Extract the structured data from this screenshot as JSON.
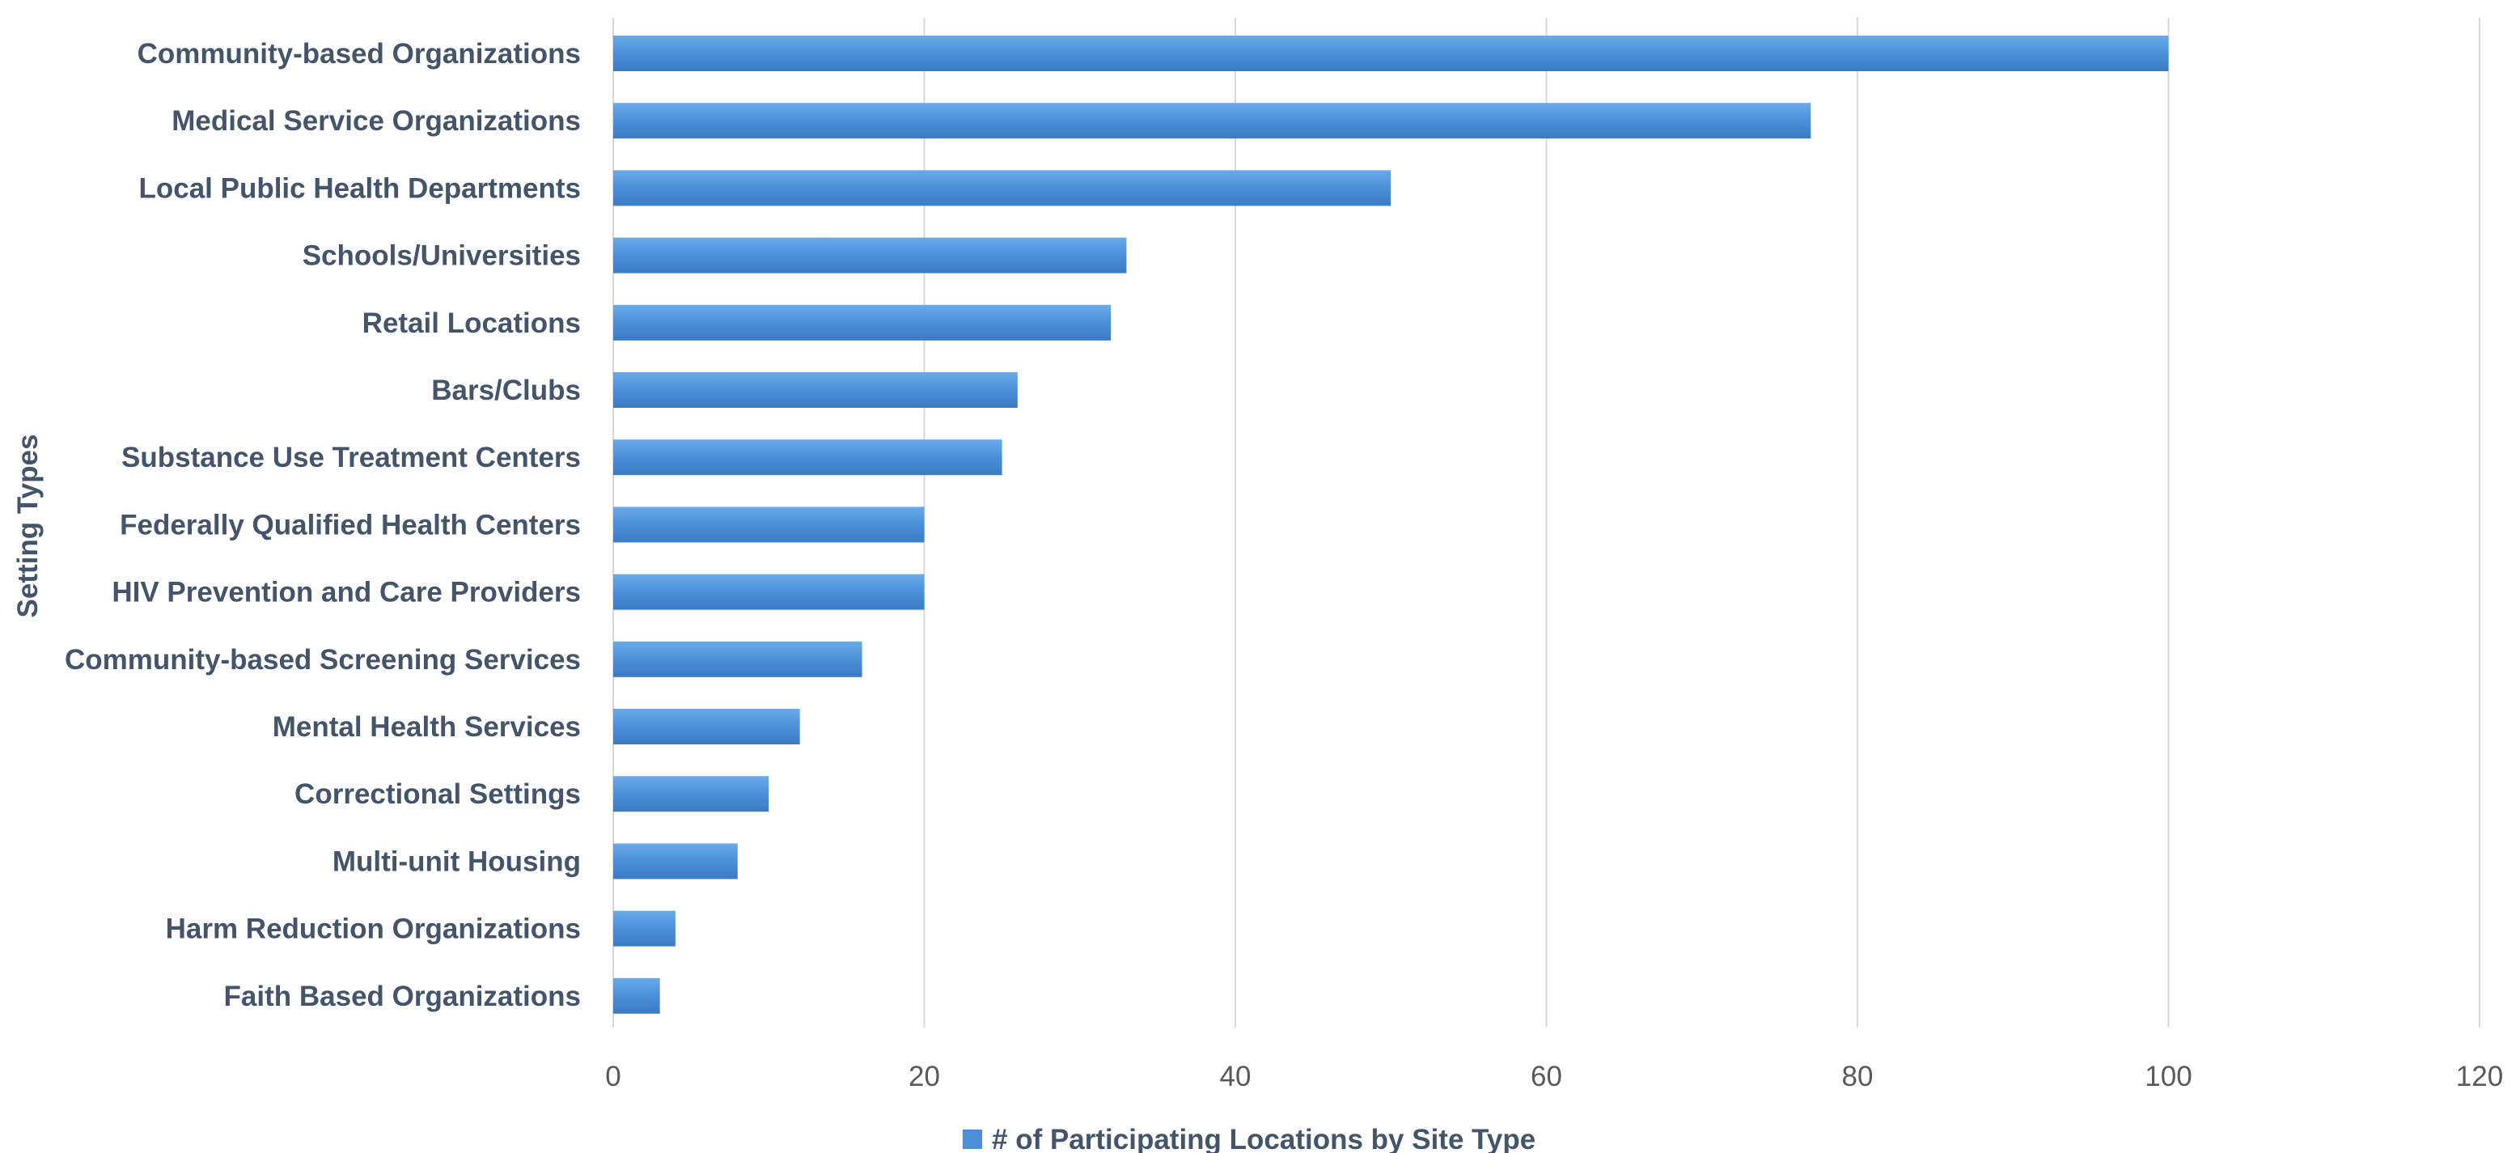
{
  "chart_data": {
    "type": "bar",
    "orientation": "horizontal",
    "ylabel": "Setting Types",
    "xlabel": "",
    "title": "",
    "xlim": [
      0,
      120
    ],
    "xticks": [
      0,
      20,
      40,
      60,
      80,
      100,
      120
    ],
    "grid": "vertical",
    "legend_position": "bottom",
    "categories": [
      "Community-based Organizations",
      "Medical Service Organizations",
      "Local Public Health Departments",
      "Schools/Universities",
      "Retail Locations",
      "Bars/Clubs",
      "Substance Use Treatment Centers",
      "Federally Qualified Health Centers",
      "HIV Prevention and Care Providers",
      "Community-based Screening Services",
      "Mental Health Services",
      "Correctional Settings",
      "Multi-unit Housing",
      "Harm Reduction Organizations",
      "Faith Based Organizations"
    ],
    "series": [
      {
        "name": "# of Participating Locations by Site Type",
        "color": "#4a90d9",
        "values": [
          100,
          77,
          50,
          33,
          32,
          26,
          25,
          20,
          20,
          16,
          12,
          10,
          8,
          4,
          3
        ]
      }
    ]
  }
}
